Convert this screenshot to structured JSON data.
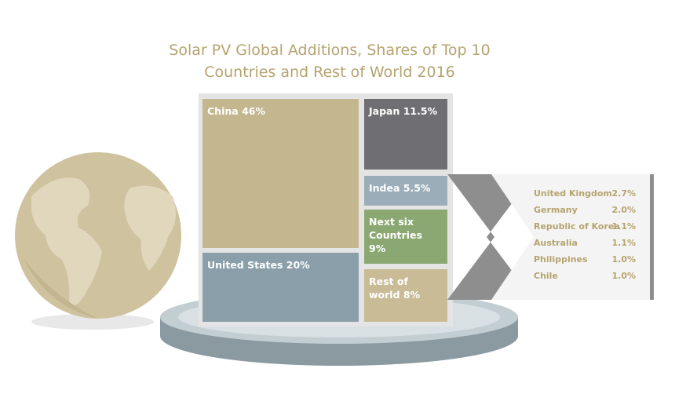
{
  "chart_data": {
    "type": "treemap",
    "title": "Solar PV Global Additions, Shares of Top 10 Countries and Rest of World 2016",
    "categories": [
      "China",
      "Japan",
      "Indea",
      "Next six Countries",
      "United States",
      "Rest of world"
    ],
    "values": [
      46,
      11.5,
      5.5,
      9,
      20,
      8
    ],
    "value_labels": [
      "46%",
      "11.5%",
      "5.5%",
      "9%",
      "20%",
      "8%"
    ],
    "colors": [
      "#c4b68f",
      "#6f6f73",
      "#9badb8",
      "#8ba872",
      "#8a9fa9",
      "#c9bb96"
    ],
    "breakdown": {
      "categories": [
        "United Kingdom",
        "Germany",
        "Republic of Korea",
        "Australia",
        "Philippines",
        "Chile"
      ],
      "values": [
        2.7,
        2.0,
        1.1,
        1.1,
        1.0,
        1.0
      ],
      "value_labels": [
        "2.7%",
        "2.0%",
        "1.1%",
        "1.1%",
        "1.0%",
        "1.0%"
      ]
    }
  }
}
